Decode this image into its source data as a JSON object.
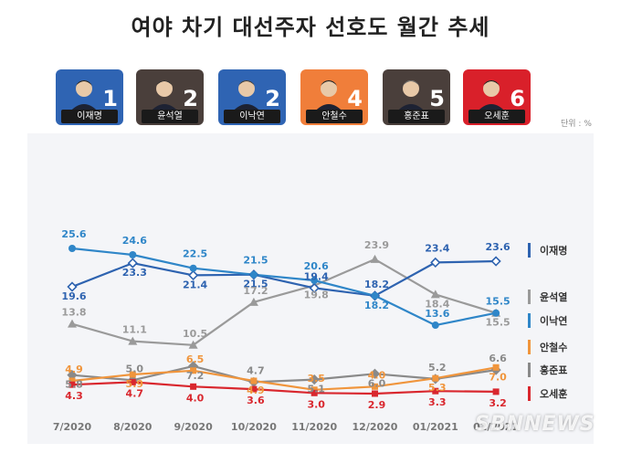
{
  "title": "여야 차기 대선주자 선호도 월간 추세",
  "unit_label": "단위 : %",
  "watermark": "SBNNEWS",
  "candidates": [
    {
      "name": "이재명",
      "rank": "1",
      "bg": "#2f64b3"
    },
    {
      "name": "윤석열",
      "rank": "2",
      "bg": "#4a3f3b"
    },
    {
      "name": "이낙연",
      "rank": "2",
      "bg": "#2f64b3"
    },
    {
      "name": "안철수",
      "rank": "4",
      "bg": "#f07e3a"
    },
    {
      "name": "홍준표",
      "rank": "5",
      "bg": "#4a3f3b"
    },
    {
      "name": "오세훈",
      "rank": "6",
      "bg": "#d9202a"
    }
  ],
  "chart_data": {
    "type": "line",
    "categories": [
      "7/2020",
      "8/2020",
      "9/2020",
      "10/2020",
      "11/2020",
      "12/2020",
      "01/2021",
      "02/2021"
    ],
    "ylim": [
      0,
      30
    ],
    "series": [
      {
        "name": "이재명",
        "color": "#2e63b0",
        "marker": "diamond",
        "values": [
          19.6,
          23.3,
          21.4,
          21.5,
          19.4,
          18.2,
          23.4,
          23.6
        ]
      },
      {
        "name": "윤석열",
        "color": "#9a9a9a",
        "marker": "triangle",
        "values": [
          13.8,
          11.1,
          10.5,
          17.2,
          19.8,
          23.9,
          18.4,
          15.5
        ]
      },
      {
        "name": "이낙연",
        "color": "#2f86c8",
        "marker": "circle",
        "values": [
          25.6,
          24.6,
          22.5,
          21.5,
          20.6,
          18.2,
          13.6,
          15.5
        ]
      },
      {
        "name": "안철수",
        "color": "#f0953c",
        "marker": "square",
        "values": [
          4.9,
          5.9,
          6.5,
          4.9,
          3.5,
          4.0,
          5.3,
          7.0
        ]
      },
      {
        "name": "홍준표",
        "color": "#8a8a8a",
        "marker": "diamond",
        "values": [
          5.8,
          5.0,
          7.2,
          4.7,
          5.1,
          6.0,
          5.2,
          6.6
        ]
      },
      {
        "name": "오세훈",
        "color": "#d9272e",
        "marker": "square",
        "values": [
          4.3,
          4.7,
          4.0,
          3.6,
          3.0,
          2.9,
          3.3,
          3.2
        ]
      }
    ],
    "labels": [
      {
        "s": 2,
        "i": 0,
        "text": "25.6"
      },
      {
        "s": 0,
        "i": 0,
        "text": "19.6"
      },
      {
        "s": 1,
        "i": 0,
        "text": "13.8"
      },
      {
        "s": 4,
        "i": 0,
        "text": "5.8"
      },
      {
        "s": 3,
        "i": 0,
        "text": "4.9"
      },
      {
        "s": 5,
        "i": 0,
        "text": "4.3"
      },
      {
        "s": 2,
        "i": 1,
        "text": "24.6"
      },
      {
        "s": 0,
        "i": 1,
        "text": "23.3"
      },
      {
        "s": 1,
        "i": 1,
        "text": "11.1"
      },
      {
        "s": 3,
        "i": 1,
        "text": "5.9"
      },
      {
        "s": 4,
        "i": 1,
        "text": "5.0"
      },
      {
        "s": 5,
        "i": 1,
        "text": "4.7"
      },
      {
        "s": 2,
        "i": 2,
        "text": "22.5"
      },
      {
        "s": 0,
        "i": 2,
        "text": "21.4"
      },
      {
        "s": 1,
        "i": 2,
        "text": "10.5"
      },
      {
        "s": 4,
        "i": 2,
        "text": "7.2"
      },
      {
        "s": 3,
        "i": 2,
        "text": "6.5"
      },
      {
        "s": 5,
        "i": 2,
        "text": "4.0"
      },
      {
        "s": 2,
        "i": 3,
        "text": "21.5"
      },
      {
        "s": 0,
        "i": 3,
        "text": "21.5"
      },
      {
        "s": 1,
        "i": 3,
        "text": "17.2"
      },
      {
        "s": 3,
        "i": 3,
        "text": "4.9"
      },
      {
        "s": 4,
        "i": 3,
        "text": "4.7"
      },
      {
        "s": 5,
        "i": 3,
        "text": "3.6"
      },
      {
        "s": 2,
        "i": 4,
        "text": "20.6"
      },
      {
        "s": 1,
        "i": 4,
        "text": "19.8"
      },
      {
        "s": 0,
        "i": 4,
        "text": "19.4"
      },
      {
        "s": 4,
        "i": 4,
        "text": "5.1"
      },
      {
        "s": 3,
        "i": 4,
        "text": "3.5"
      },
      {
        "s": 5,
        "i": 4,
        "text": "3.0"
      },
      {
        "s": 1,
        "i": 5,
        "text": "23.9"
      },
      {
        "s": 2,
        "i": 5,
        "text": "18.2"
      },
      {
        "s": 0,
        "i": 5,
        "text": "18.2"
      },
      {
        "s": 4,
        "i": 5,
        "text": "6.0"
      },
      {
        "s": 3,
        "i": 5,
        "text": "4.0"
      },
      {
        "s": 5,
        "i": 5,
        "text": "2.9"
      },
      {
        "s": 0,
        "i": 6,
        "text": "23.4"
      },
      {
        "s": 1,
        "i": 6,
        "text": "18.4"
      },
      {
        "s": 2,
        "i": 6,
        "text": "13.6"
      },
      {
        "s": 3,
        "i": 6,
        "text": "5.3"
      },
      {
        "s": 4,
        "i": 6,
        "text": "5.2"
      },
      {
        "s": 5,
        "i": 6,
        "text": "3.3"
      },
      {
        "s": 0,
        "i": 7,
        "text": "23.6"
      },
      {
        "s": 1,
        "i": 7,
        "text": "15.5"
      },
      {
        "s": 2,
        "i": 7,
        "text": "15.5"
      },
      {
        "s": 3,
        "i": 7,
        "text": "7.0"
      },
      {
        "s": 4,
        "i": 7,
        "text": "6.6"
      },
      {
        "s": 5,
        "i": 7,
        "text": "3.2"
      }
    ],
    "legend": [
      "이재명",
      "윤석열",
      "이낙연",
      "안철수",
      "홍준표",
      "오세훈"
    ],
    "legend_position": "right"
  }
}
